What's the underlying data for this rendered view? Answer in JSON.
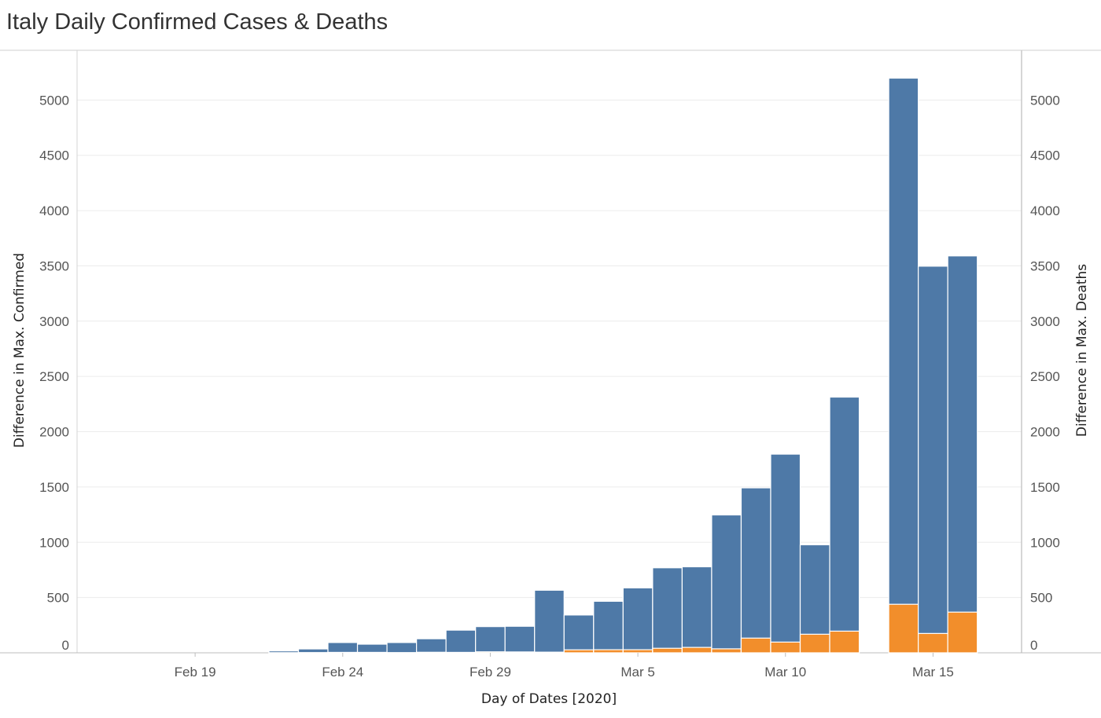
{
  "title": "Italy Daily Confirmed Cases & Deaths",
  "chart_data": {
    "type": "bar",
    "title": "Italy Daily Confirmed Cases & Deaths",
    "xlabel": "Day of Dates [2020]",
    "ylabel": "Difference in Max. Confirmed",
    "y2label": "Difference in Max. Deaths",
    "ylim": [
      0,
      5450
    ],
    "yticks": [
      0,
      500,
      1000,
      1500,
      2000,
      2500,
      3000,
      3500,
      4000,
      4500,
      5000
    ],
    "xticks": [
      {
        "label": "Feb 19",
        "date": "2020-02-19"
      },
      {
        "label": "Feb 24",
        "date": "2020-02-24"
      },
      {
        "label": "Feb 29",
        "date": "2020-02-29"
      },
      {
        "label": "Mar 5",
        "date": "2020-03-05"
      },
      {
        "label": "Mar 10",
        "date": "2020-03-10"
      },
      {
        "label": "Mar 15",
        "date": "2020-03-15"
      }
    ],
    "x_range": [
      "2020-02-15",
      "2020-03-18"
    ],
    "categories": [
      "2020-02-21",
      "2020-02-22",
      "2020-02-23",
      "2020-02-24",
      "2020-02-25",
      "2020-02-26",
      "2020-02-27",
      "2020-02-28",
      "2020-02-29",
      "2020-03-01",
      "2020-03-02",
      "2020-03-03",
      "2020-03-04",
      "2020-03-05",
      "2020-03-06",
      "2020-03-07",
      "2020-03-08",
      "2020-03-09",
      "2020-03-10",
      "2020-03-11",
      "2020-03-12",
      "2020-03-13",
      "2020-03-14",
      "2020-03-15",
      "2020-03-16"
    ],
    "series": [
      {
        "name": "Difference in Max. Confirmed",
        "color": "#4e79a7",
        "values": [
          0,
          17,
          35,
          93,
          78,
          93,
          127,
          205,
          237,
          240,
          566,
          342,
          466,
          587,
          769,
          778,
          1247,
          1492,
          1797,
          977,
          2313,
          null,
          5198,
          3497,
          3590
        ]
      },
      {
        "name": "Difference in Max. Deaths",
        "color": "#f28e2b",
        "values": [
          0,
          1,
          2,
          4,
          4,
          2,
          5,
          4,
          9,
          8,
          6,
          27,
          28,
          28,
          41,
          49,
          36,
          133,
          97,
          168,
          196,
          null,
          439,
          175,
          368
        ]
      }
    ]
  }
}
